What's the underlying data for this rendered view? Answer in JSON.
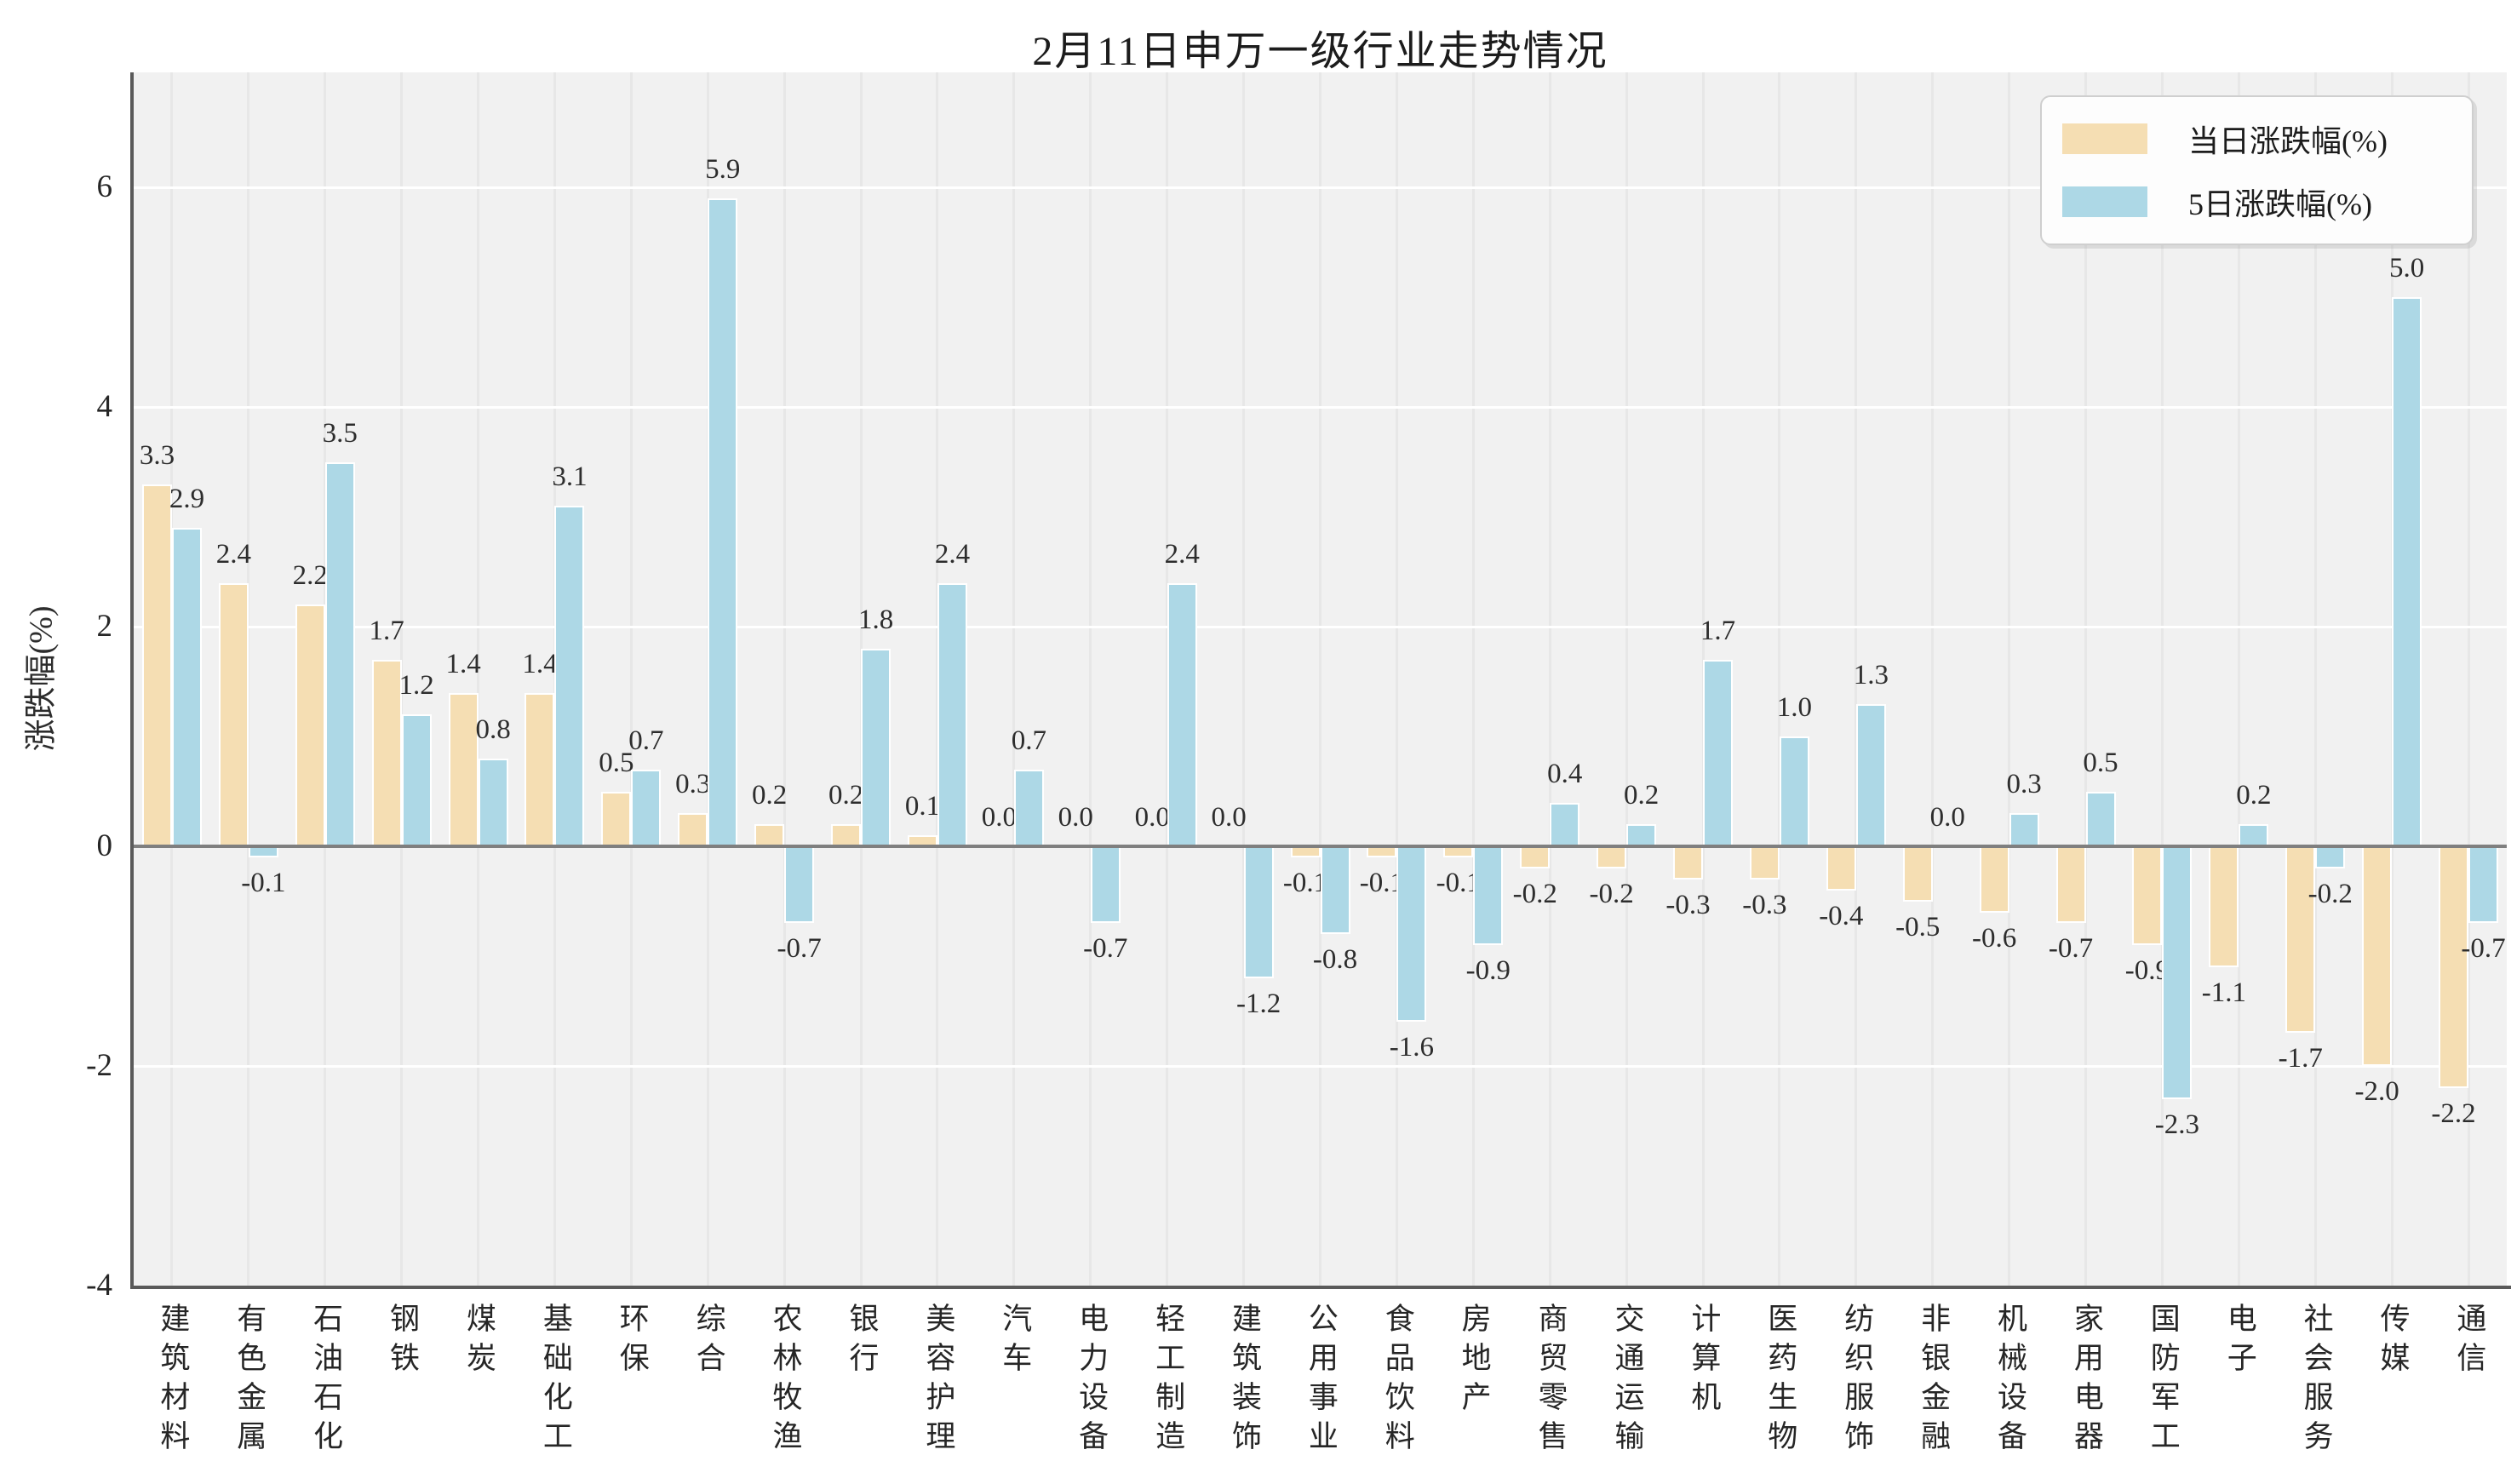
{
  "title": "2月11日申万一级行业走势情况",
  "ylabel": "涨跌幅(%)",
  "colors": {
    "bar_today": "#f5deb3",
    "bar_5day": "#add8e6",
    "plot_bg": "#f1f1f1",
    "grid_horizontal": "#ffffff",
    "grid_vertical": "#e7e7e7",
    "zero_line": "#7f7f7f",
    "spine": "#5a5a5a",
    "text": "#262626"
  },
  "chart_data": {
    "type": "bar",
    "title": "2月11日申万一级行业走势情况",
    "xlabel": "",
    "ylabel": "涨跌幅(%)",
    "ylim": [
      -4,
      7.05
    ],
    "yticks": [
      6,
      4,
      2,
      0,
      -2,
      -4
    ],
    "grid": true,
    "legend_position": "upper right",
    "bar_label_format": "one_decimal",
    "categories": [
      "建筑材料",
      "有色金属",
      "石油石化",
      "钢铁",
      "煤炭",
      "基础化工",
      "环保",
      "综合",
      "农林牧渔",
      "银行",
      "美容护理",
      "汽车",
      "电力设备",
      "轻工制造",
      "建筑装饰",
      "公用事业",
      "食品饮料",
      "房地产",
      "商贸零售",
      "交通运输",
      "计算机",
      "医药生物",
      "纺织服饰",
      "非银金融",
      "机械设备",
      "家用电器",
      "国防军工",
      "电子",
      "社会服务",
      "传媒",
      "通信"
    ],
    "series": [
      {
        "name": "当日涨跌幅(%)",
        "color": "#f5deb3",
        "values": [
          3.3,
          2.4,
          2.2,
          1.7,
          1.4,
          1.4,
          0.5,
          0.3,
          0.2,
          0.2,
          0.1,
          0.0,
          0.0,
          0.0,
          0.0,
          -0.1,
          -0.1,
          -0.1,
          -0.2,
          -0.2,
          -0.3,
          -0.3,
          -0.4,
          -0.5,
          -0.6,
          -0.7,
          -0.9,
          -1.1,
          -1.7,
          -2.0,
          -2.2
        ]
      },
      {
        "name": "5日涨跌幅(%)",
        "color": "#add8e6",
        "values": [
          2.9,
          -0.1,
          3.5,
          1.2,
          0.8,
          3.1,
          0.7,
          5.9,
          -0.7,
          1.8,
          2.4,
          0.7,
          -0.7,
          2.4,
          -1.2,
          -0.8,
          -1.6,
          -0.9,
          0.4,
          0.2,
          1.7,
          1.0,
          1.3,
          0.0,
          0.3,
          0.5,
          -2.3,
          0.2,
          -0.2,
          5.0,
          -0.7
        ]
      }
    ]
  }
}
